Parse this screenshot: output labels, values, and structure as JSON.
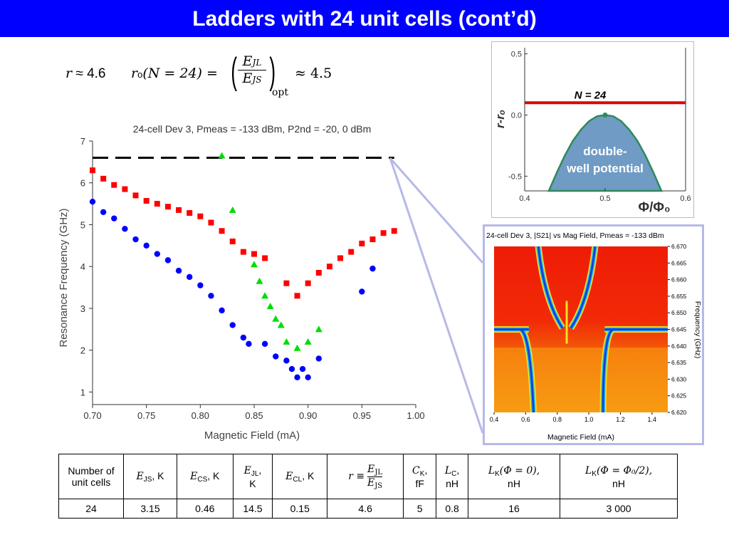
{
  "slide": {
    "title": "Ladders with 24 unit cells (cont’d)"
  },
  "formula": {
    "lhs_var": "r",
    "lhs_value": "≈ 4.6",
    "ro_var": "r",
    "ro_sub": "o",
    "ro_arg": "(N = 24) =",
    "frac_num": "E",
    "frac_num_sub": "JL",
    "frac_den": "E",
    "frac_den_sub": "JS",
    "opt_sub": "opt",
    "rhs_value": "≈ 4.5"
  },
  "colors": {
    "title_bg": "#0000ff",
    "red_series": "#ff0000",
    "blue_series": "#0000ff",
    "green_series": "#00dd00",
    "threshold_line": "#e00000",
    "well_fill": "#6f9bc5",
    "zoom_frame": "#b6b9e8"
  },
  "chart_data": [
    {
      "type": "scatter",
      "title": "24-cell Dev 3, Pmeas = -133 dBm, P2nd = -20, 0 dBm",
      "xlabel": "Magnetic Field (mA)",
      "ylabel": "Resonance Frequency (GHz)",
      "xlim": [
        0.7,
        1.0
      ],
      "ylim": [
        0.7,
        7.0
      ],
      "xticks": [
        "0.70",
        "0.75",
        "0.80",
        "0.85",
        "0.90",
        "0.95",
        "1.00"
      ],
      "yticks": [
        "1",
        "2",
        "3",
        "4",
        "5",
        "6",
        "7"
      ],
      "hline": {
        "y": 6.6,
        "x_from": 0.7,
        "x_to": 0.98,
        "style": "dashed"
      },
      "series": [
        {
          "marker": "square",
          "x": [
            0.7,
            0.71,
            0.72,
            0.73,
            0.74,
            0.75,
            0.76,
            0.77,
            0.78,
            0.79,
            0.8,
            0.81,
            0.82,
            0.83,
            0.84,
            0.85,
            0.86,
            0.88,
            0.89,
            0.9,
            0.91,
            0.92,
            0.93,
            0.94,
            0.95,
            0.96,
            0.97,
            0.98
          ],
          "y": [
            6.3,
            6.1,
            5.95,
            5.85,
            5.7,
            5.57,
            5.5,
            5.43,
            5.35,
            5.28,
            5.2,
            5.05,
            4.85,
            4.6,
            4.35,
            4.3,
            4.2,
            3.6,
            3.3,
            3.6,
            3.85,
            4.0,
            4.2,
            4.35,
            4.55,
            4.65,
            4.8,
            4.85
          ]
        },
        {
          "marker": "circle",
          "x": [
            0.7,
            0.71,
            0.72,
            0.73,
            0.74,
            0.75,
            0.76,
            0.77,
            0.78,
            0.79,
            0.8,
            0.81,
            0.82,
            0.83,
            0.84,
            0.845,
            0.86,
            0.87,
            0.88,
            0.885,
            0.89,
            0.895,
            0.9,
            0.91,
            0.95,
            0.96
          ],
          "y": [
            5.55,
            5.3,
            5.15,
            4.9,
            4.65,
            4.5,
            4.3,
            4.15,
            3.9,
            3.75,
            3.55,
            3.3,
            2.95,
            2.6,
            2.3,
            2.15,
            2.15,
            1.85,
            1.75,
            1.55,
            1.35,
            1.55,
            1.35,
            1.8,
            3.4,
            3.95
          ]
        },
        {
          "marker": "triangle",
          "x": [
            0.82,
            0.83,
            0.85,
            0.855,
            0.86,
            0.865,
            0.87,
            0.875,
            0.88,
            0.89,
            0.9,
            0.91
          ],
          "y": [
            6.65,
            5.35,
            4.05,
            3.65,
            3.3,
            3.05,
            2.75,
            2.6,
            2.2,
            2.05,
            2.2,
            2.5
          ]
        }
      ]
    },
    {
      "type": "area",
      "xlabel": "Φ/Φ₀",
      "ylabel": "r-rₒ",
      "xlim": [
        0.4,
        0.6
      ],
      "ylim": [
        -0.62,
        0.55
      ],
      "xticks": [
        "0.4",
        "0.5",
        "0.6"
      ],
      "yticks": [
        "0.5",
        "0.0",
        "-0.5"
      ],
      "threshold": {
        "y": 0.1,
        "label": "N = 24"
      },
      "curve": {
        "x": [
          0.43,
          0.44,
          0.45,
          0.46,
          0.47,
          0.48,
          0.49,
          0.5,
          0.51,
          0.52,
          0.53,
          0.54,
          0.55,
          0.56,
          0.57
        ],
        "y": [
          -0.62,
          -0.47,
          -0.33,
          -0.21,
          -0.12,
          -0.05,
          -0.01,
          0.0,
          -0.01,
          -0.05,
          -0.12,
          -0.21,
          -0.33,
          -0.47,
          -0.62
        ]
      },
      "peak": {
        "x": 0.5,
        "y": 0.0
      },
      "annotation": [
        "double-",
        "well potential"
      ]
    },
    {
      "type": "heatmap",
      "title": "24-cell Dev 3, |S21| vs Mag Field, Pmeas = -133 dBm",
      "xlabel": "Magnetic Field (mA)",
      "ylabel": "Frequency (GHz)",
      "xlim": [
        0.4,
        1.5
      ],
      "ylim": [
        6.62,
        6.67
      ],
      "xticks": [
        "0.4",
        "0.6",
        "0.8",
        "1.0",
        "1.2",
        "1.4"
      ],
      "yticks": [
        "6.670",
        "6.665",
        "6.660",
        "6.655",
        "6.650",
        "6.645",
        "6.640",
        "6.635",
        "6.630",
        "6.625",
        "6.620"
      ],
      "baseline_frequency": 6.645
    }
  ],
  "table": {
    "headers": [
      {
        "text": "Number of unit cells"
      },
      {
        "sym": "E",
        "sub": "JS",
        "unit": ", K"
      },
      {
        "sym": "E",
        "sub": "CS",
        "unit": ", K"
      },
      {
        "sym": "E",
        "sub": "JL",
        "unit": ",",
        "unit2": "K"
      },
      {
        "sym": "E",
        "sub": "CL",
        "unit": ", K"
      },
      {
        "frac": true,
        "pre": "r ≡",
        "num": "JL",
        "den": "JS"
      },
      {
        "sym": "C",
        "sub": "K",
        "unit": ",",
        "unit2": "fF"
      },
      {
        "sym": "L",
        "sub": "C",
        "unit": ",",
        "unit2": "nH"
      },
      {
        "sym": "L",
        "sub": "K",
        "arg": "(Φ = 0),",
        "unit2": "nH"
      },
      {
        "sym": "L",
        "sub": "K",
        "arg": "(Φ = Φ₀/2),",
        "unit2": "nH"
      }
    ],
    "rows": [
      [
        "24",
        "3.15",
        "0.46",
        "14.5",
        "0.15",
        "4.6",
        "5",
        "0.8",
        "16",
        "3 000"
      ]
    ]
  }
}
